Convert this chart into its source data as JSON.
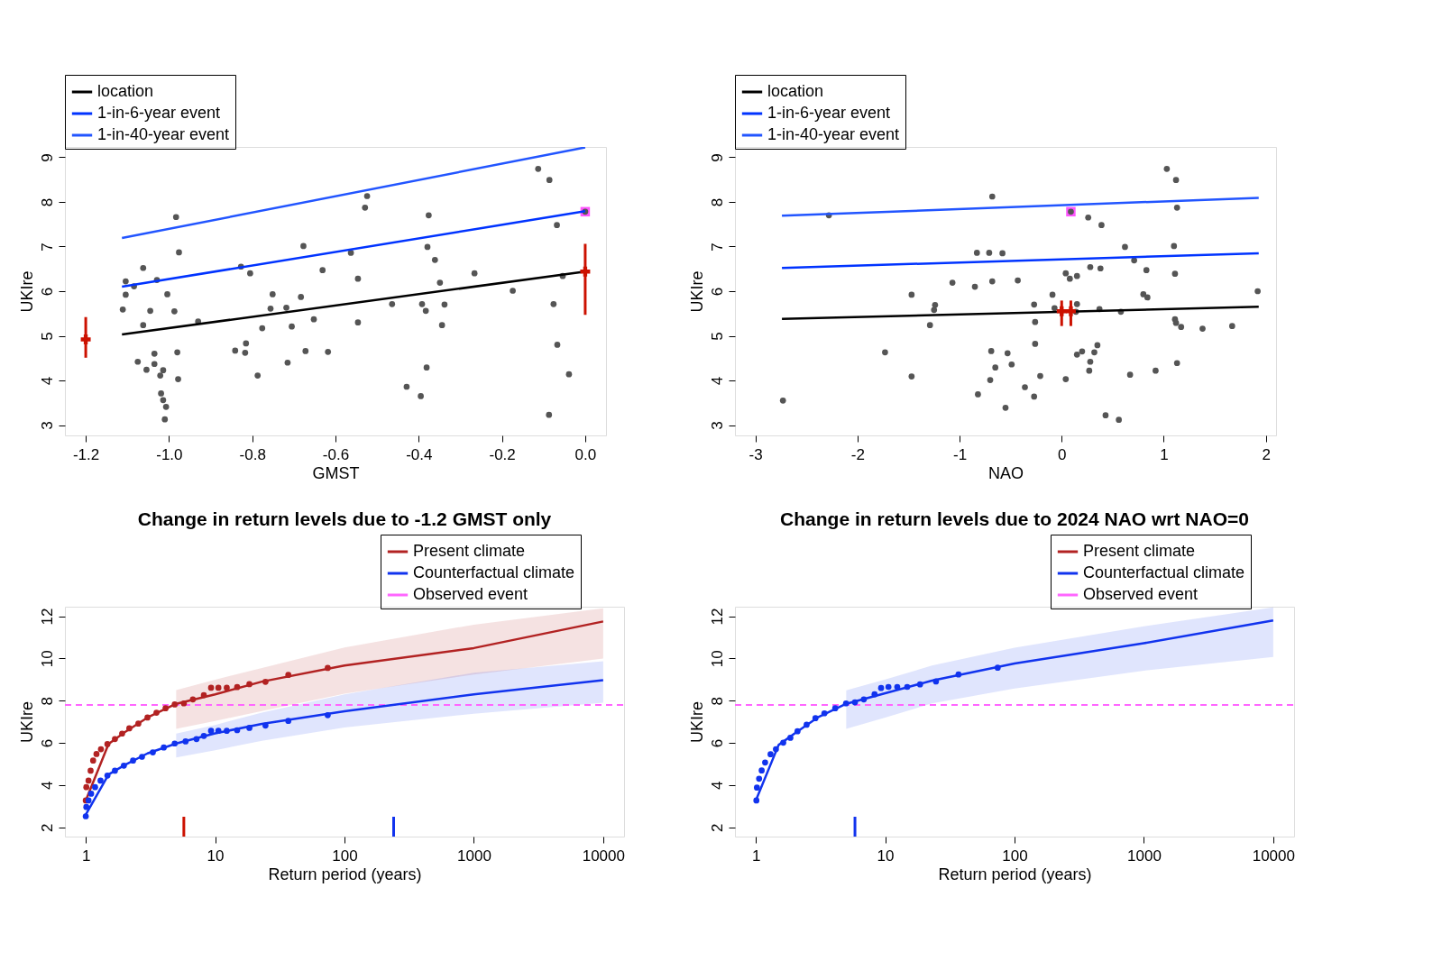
{
  "chart_data": [
    {
      "type": "scatter",
      "xlabel": "GMST",
      "ylabel": "UKIre",
      "xlim": [
        -1.25,
        0.05
      ],
      "ylim": [
        2.77,
        9.23
      ],
      "xticks": [
        {
          "value": -1.2,
          "label": "-1.2"
        },
        {
          "value": -1.0,
          "label": "-1.0"
        },
        {
          "value": -0.8,
          "label": "-0.8"
        },
        {
          "value": -0.6,
          "label": "-0.6"
        },
        {
          "value": -0.4,
          "label": "-0.4"
        },
        {
          "value": -0.2,
          "label": "-0.2"
        },
        {
          "value": 0.0,
          "label": "0.0"
        }
      ],
      "yticks": [
        3,
        4,
        5,
        6,
        7,
        8,
        9
      ],
      "grid": false,
      "legend": "top left",
      "series": [
        {
          "marker": "square",
          "color": "#ff55ff",
          "x": [
            0.0
          ],
          "values": [
            7.78
          ]
        },
        {
          "marker": "circle",
          "color": "#555555",
          "x": [
            -0.113,
            -0.086,
            -0.524,
            -0.529,
            -0.983,
            -0.376,
            0.0,
            -0.068,
            -0.976,
            -0.677,
            -0.379,
            -0.361,
            -0.563,
            -1.062,
            -0.827,
            -0.805,
            -0.631,
            -0.266,
            -1.104,
            -1.029,
            -1.084,
            -0.546,
            -0.349,
            -0.054,
            -1.104,
            -1.004,
            -0.751,
            -0.683,
            -0.174,
            -1.111,
            -1.045,
            -0.987,
            -0.756,
            -0.718,
            -0.464,
            -0.392,
            -0.383,
            -0.338,
            -0.076,
            -0.93,
            -1.062,
            -0.776,
            -0.705,
            -0.652,
            -0.546,
            -0.344,
            -0.815,
            -0.841,
            -0.817,
            -0.672,
            -0.618,
            -0.98,
            -1.035,
            -0.067,
            -1.075,
            -1.035,
            -1.054,
            -1.014,
            -1.021,
            -0.715,
            -0.787,
            -0.978,
            -0.381,
            -0.039,
            -0.429,
            -0.395,
            -1.019,
            -1.014,
            -1.007,
            -1.01,
            -0.087
          ],
          "values": [
            8.74,
            8.49,
            8.13,
            7.87,
            7.66,
            7.7,
            7.78,
            7.48,
            6.87,
            7.01,
            6.99,
            6.7,
            6.86,
            6.52,
            6.55,
            6.4,
            6.47,
            6.4,
            6.22,
            6.25,
            6.11,
            6.28,
            6.19,
            6.34,
            5.92,
            5.93,
            5.93,
            5.87,
            6.01,
            5.59,
            5.56,
            5.55,
            5.61,
            5.63,
            5.71,
            5.71,
            5.56,
            5.7,
            5.71,
            5.32,
            5.24,
            5.17,
            5.21,
            5.37,
            5.3,
            5.24,
            4.83,
            4.67,
            4.62,
            4.66,
            4.64,
            4.63,
            4.6,
            4.8,
            4.42,
            4.37,
            4.24,
            4.23,
            4.11,
            4.4,
            4.11,
            4.03,
            4.29,
            4.14,
            3.86,
            3.65,
            3.71,
            3.56,
            3.41,
            3.13,
            3.23
          ]
        },
        {
          "name": "location",
          "type": "line",
          "color": "#000000",
          "x": [
            -1.113,
            0.0
          ],
          "values": [
            5.03,
            6.44
          ]
        },
        {
          "name": "1-in-6-year event",
          "type": "line",
          "color": "#0033ff",
          "x": [
            -1.113,
            0.0
          ],
          "values": [
            6.1,
            7.79
          ]
        },
        {
          "name": "1-in-40-year event",
          "type": "line",
          "color": "#2255ff",
          "x": [
            -1.113,
            0.0
          ],
          "values": [
            7.19,
            9.22
          ]
        },
        {
          "marker": "cross",
          "color": "#cc1100",
          "x": [
            -1.2,
            0.0
          ],
          "values": [
            4.92,
            6.44
          ],
          "errors": [
            [
              4.51,
              5.42
            ],
            [
              5.47,
              7.06
            ]
          ]
        }
      ]
    },
    {
      "type": "scatter",
      "xlabel": "NAO",
      "ylabel": "UKIre",
      "xlim": [
        -3.2,
        2.1
      ],
      "ylim": [
        2.77,
        9.23
      ],
      "xticks": [
        {
          "value": -3,
          "label": "-3"
        },
        {
          "value": -2,
          "label": "-2"
        },
        {
          "value": -1,
          "label": "-1"
        },
        0,
        1,
        2
      ],
      "yticks": [
        3,
        4,
        5,
        6,
        7,
        8,
        9
      ],
      "grid": false,
      "legend": "top left",
      "series": [
        {
          "marker": "square",
          "color": "#ff55ff",
          "x": [
            0.09
          ],
          "values": [
            7.78
          ]
        },
        {
          "marker": "circle",
          "color": "#555555",
          "x": [
            1.03,
            1.12,
            -0.68,
            -2.28,
            0.09,
            0.26,
            0.39,
            1.13,
            -0.83,
            -0.71,
            -0.58,
            0.62,
            1.1,
            0.71,
            0.28,
            0.38,
            0.83,
            1.11,
            0.04,
            0.08,
            0.15,
            -1.07,
            -0.85,
            -0.68,
            -0.43,
            -1.47,
            -0.09,
            0.8,
            0.84,
            1.92,
            -1.24,
            -1.25,
            -0.27,
            -0.07,
            0.15,
            0.37,
            0.58,
            0.14,
            -1.29,
            -0.26,
            1.11,
            1.12,
            1.17,
            1.38,
            1.67,
            -1.73,
            -0.26,
            -0.69,
            -0.53,
            0.35,
            0.2,
            0.15,
            0.32,
            -0.65,
            -0.49,
            0.28,
            0.27,
            1.13,
            0.92,
            -1.47,
            -0.7,
            -0.21,
            0.04,
            0.67,
            -0.36,
            -0.27,
            -0.82,
            -0.55,
            -2.73,
            0.43,
            0.56
          ],
          "values": [
            8.74,
            8.49,
            8.12,
            7.7,
            7.78,
            7.65,
            7.48,
            7.87,
            6.86,
            6.86,
            6.85,
            6.99,
            7.01,
            6.69,
            6.54,
            6.51,
            6.47,
            6.39,
            6.4,
            6.28,
            6.34,
            6.19,
            6.1,
            6.22,
            6.24,
            5.92,
            5.92,
            5.93,
            5.86,
            6.0,
            5.69,
            5.58,
            5.7,
            5.62,
            5.71,
            5.6,
            5.54,
            5.54,
            5.24,
            5.31,
            5.37,
            5.29,
            5.2,
            5.16,
            5.22,
            4.63,
            4.82,
            4.66,
            4.61,
            4.79,
            4.65,
            4.58,
            4.63,
            4.29,
            4.36,
            4.42,
            4.22,
            4.39,
            4.22,
            4.09,
            4.01,
            4.1,
            4.03,
            4.13,
            3.85,
            3.64,
            3.69,
            3.39,
            3.55,
            3.22,
            3.12
          ]
        },
        {
          "name": "location",
          "type": "line",
          "color": "#000000",
          "x": [
            -2.74,
            1.93
          ],
          "values": [
            5.38,
            5.65
          ]
        },
        {
          "name": "1-in-6-year event",
          "type": "line",
          "color": "#0033ff",
          "x": [
            -2.74,
            1.93
          ],
          "values": [
            6.52,
            6.85
          ]
        },
        {
          "name": "1-in-40-year event",
          "type": "line",
          "color": "#2255ff",
          "x": [
            -2.74,
            1.93
          ],
          "values": [
            7.69,
            8.09
          ]
        },
        {
          "marker": "cross",
          "color": "#cc1100",
          "x": [
            0.0,
            0.09
          ],
          "values": [
            5.55,
            5.55
          ],
          "errors": [
            [
              5.22,
              5.79
            ],
            [
              5.22,
              5.79
            ]
          ]
        }
      ]
    },
    {
      "type": "line",
      "title": "Change in return levels due to -1.2 GMST only",
      "xlabel": "Return period (years)",
      "ylabel": "UKIre",
      "log": "x",
      "xlim": [
        0.69,
        14500
      ],
      "ylim": [
        1.56,
        12.45
      ],
      "xticks": [
        1,
        10,
        100,
        1000,
        10000
      ],
      "yticks": [
        2,
        4,
        6,
        8,
        10,
        12
      ],
      "grid": false,
      "legend": "top right",
      "series": [
        {
          "name": "Present climate",
          "color": "#b22222",
          "x": [
            1,
            1.5,
            2,
            3,
            5,
            10,
            23,
            100,
            1000,
            10000
          ],
          "values": [
            3.27,
            5.95,
            6.5,
            7.2,
            7.85,
            8.3,
            8.9,
            9.66,
            10.49,
            11.75
          ],
          "lower": [
            null,
            null,
            null,
            null,
            6.66,
            7.04,
            7.51,
            8.33,
            9.24,
            9.99
          ],
          "upper": [
            null,
            null,
            null,
            null,
            8.5,
            8.99,
            9.55,
            10.52,
            11.6,
            12.38
          ]
        },
        {
          "name": "Counterfactual climate",
          "color": "#1133ee",
          "x": [
            1,
            1.5,
            2,
            3,
            5,
            10,
            23,
            100,
            1000,
            10000
          ],
          "values": [
            2.6,
            4.5,
            4.95,
            5.5,
            5.97,
            6.45,
            6.9,
            7.5,
            8.3,
            8.97
          ],
          "lower": [
            null,
            null,
            null,
            null,
            5.31,
            5.65,
            6.1,
            6.73,
            7.38,
            7.9
          ],
          "upper": [
            null,
            null,
            null,
            null,
            6.44,
            6.85,
            7.43,
            8.3,
            9.32,
            9.87
          ]
        },
        {
          "type": "scatter",
          "marker": "circle",
          "color": "#b22222",
          "x": [
            1.0,
            1.01,
            1.05,
            1.09,
            1.14,
            1.21,
            1.31,
            1.47,
            1.68,
            1.91,
            2.17,
            2.55,
            3.0,
            3.52,
            4.14,
            4.87,
            5.73,
            6.73,
            8.18,
            9.3,
            10.6,
            12.3,
            14.8,
            18.4,
            24.5,
            36.8,
            74.2
          ],
          "values": [
            3.27,
            3.9,
            4.21,
            4.68,
            5.16,
            5.47,
            5.7,
            5.94,
            6.18,
            6.44,
            6.69,
            6.91,
            7.2,
            7.43,
            7.64,
            7.82,
            7.87,
            8.06,
            8.26,
            8.61,
            8.61,
            8.61,
            8.64,
            8.78,
            8.89,
            9.22,
            9.55
          ]
        },
        {
          "type": "scatter",
          "marker": "circle",
          "color": "#1133ee",
          "x": [
            1.0,
            1.01,
            1.05,
            1.1,
            1.18,
            1.3,
            1.47,
            1.68,
            1.97,
            2.32,
            2.72,
            3.3,
            4.01,
            4.87,
            5.91,
            7.18,
            8.18,
            9.3,
            10.6,
            12.3,
            14.8,
            18.4,
            24.5,
            36.8,
            74.2
          ],
          "values": [
            2.52,
            2.96,
            3.27,
            3.59,
            3.9,
            4.21,
            4.45,
            4.68,
            4.92,
            5.16,
            5.34,
            5.55,
            5.78,
            5.97,
            6.07,
            6.18,
            6.33,
            6.57,
            6.57,
            6.57,
            6.6,
            6.71,
            6.82,
            7.04,
            7.31
          ]
        }
      ],
      "ref_lines": [
        {
          "axis": "y",
          "value": 7.79,
          "label": "Observed event",
          "color": "#ff66ff",
          "line_style": "dashed"
        },
        {
          "axis": "x",
          "value": 5.73,
          "color": "#cc1100"
        },
        {
          "axis": "x",
          "value": 240,
          "color": "#1133ee"
        }
      ]
    },
    {
      "type": "line",
      "title": "Change in return levels due to 2024 NAO wrt NAO=0",
      "xlabel": "Return period (years)",
      "ylabel": "UKIre",
      "log": "x",
      "xlim": [
        0.69,
        14500
      ],
      "ylim": [
        1.56,
        12.45
      ],
      "xticks": [
        1,
        10,
        100,
        1000,
        10000
      ],
      "yticks": [
        2,
        4,
        6,
        8,
        10,
        12
      ],
      "grid": false,
      "legend": "top right",
      "series": [
        {
          "name": "Present climate",
          "color": "#b22222"
        },
        {
          "name": "Counterfactual climate",
          "color": "#1133ee",
          "x": [
            1,
            1.5,
            2,
            3,
            5,
            10,
            23,
            100,
            1000,
            10000
          ],
          "values": [
            3.27,
            5.9,
            6.45,
            7.2,
            7.85,
            8.35,
            8.95,
            9.76,
            10.72,
            11.8
          ],
          "lower": [
            null,
            null,
            null,
            null,
            6.66,
            7.2,
            7.87,
            8.57,
            9.42,
            10.07
          ],
          "upper": [
            null,
            null,
            null,
            null,
            8.49,
            9.0,
            9.66,
            10.51,
            11.52,
            12.42
          ]
        },
        {
          "type": "scatter",
          "marker": "circle",
          "color": "#1133ee",
          "x": [
            1.01,
            1.02,
            1.06,
            1.11,
            1.18,
            1.3,
            1.43,
            1.63,
            1.85,
            2.1,
            2.47,
            2.89,
            3.39,
            4.11,
            4.98,
            5.84,
            6.84,
            8.28,
            9.3,
            10.6,
            12.4,
            14.8,
            18.6,
            24.7,
            36.9,
            74.1
          ],
          "values": [
            3.27,
            3.88,
            4.3,
            4.69,
            5.07,
            5.46,
            5.7,
            6.01,
            6.24,
            6.55,
            6.86,
            7.17,
            7.4,
            7.64,
            7.87,
            7.92,
            8.06,
            8.3,
            8.6,
            8.65,
            8.65,
            8.65,
            8.77,
            8.91,
            9.24,
            9.56
          ]
        }
      ],
      "ref_lines": [
        {
          "axis": "y",
          "value": 7.79,
          "label": "Observed event",
          "color": "#ff66ff",
          "line_style": "dashed"
        },
        {
          "axis": "x",
          "value": 5.84,
          "color": "#1133ee"
        }
      ]
    }
  ]
}
